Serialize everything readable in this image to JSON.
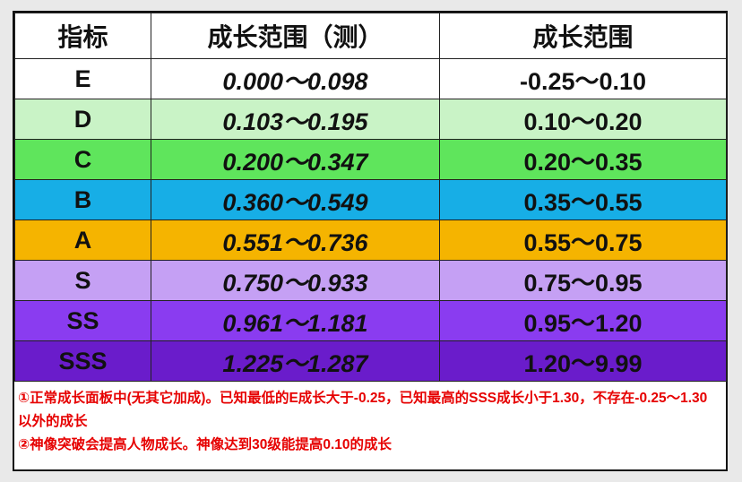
{
  "table": {
    "header": [
      "指标",
      "成长范围（测）",
      "成长范围"
    ],
    "rows": [
      [
        "E",
        "0.000～0.098",
        "-0.25～0.10"
      ],
      [
        "D",
        "0.103～0.195",
        "0.10～0.20"
      ],
      [
        "C",
        "0.200～0.347",
        "0.20～0.35"
      ],
      [
        "B",
        "0.360～0.549",
        "0.35～0.55"
      ],
      [
        "A",
        "0.551～0.736",
        "0.55～0.75"
      ],
      [
        "S",
        "0.750～0.933",
        "0.75～0.95"
      ],
      [
        "SS",
        "0.961～1.181",
        "0.95～1.20"
      ],
      [
        "SSS",
        "1.225～1.287",
        "1.20～9.99"
      ]
    ]
  },
  "notes": [
    "①正常成长面板中(无其它加成)。已知最低的E成长大于-0.25，已知最高的SSS成长小于1.30，不存在-0.25～1.30以外的成长",
    "②神像突破会提高人物成长。神像达到30级能提高0.10的成长"
  ]
}
